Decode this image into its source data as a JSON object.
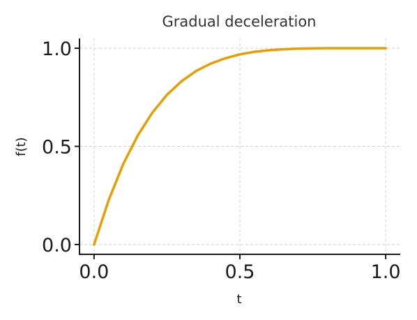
{
  "chart_data": {
    "type": "line",
    "title": "Gradual deceleration",
    "xlabel": "t",
    "ylabel": "f(t)",
    "xlim": [
      -0.05,
      1.05
    ],
    "ylim": [
      -0.05,
      1.05
    ],
    "x_ticks": [
      0.0,
      0.5,
      1.0
    ],
    "y_ticks": [
      0.0,
      0.5,
      1.0
    ],
    "x_tick_labels": [
      "0.0",
      "0.5",
      "1.0"
    ],
    "y_tick_labels": [
      "0.0",
      "0.5",
      "1.0"
    ],
    "grid": true,
    "series": [
      {
        "color": "#E69F00",
        "x": [
          0.0,
          0.05,
          0.1,
          0.15,
          0.2,
          0.25,
          0.3,
          0.35,
          0.4,
          0.45,
          0.5,
          0.55,
          0.6,
          0.65,
          0.7,
          0.75,
          0.8,
          0.85,
          0.9,
          0.95,
          1.0
        ],
        "y": [
          0.0,
          0.226,
          0.41,
          0.556,
          0.672,
          0.763,
          0.832,
          0.884,
          0.922,
          0.949,
          0.969,
          0.982,
          0.99,
          0.995,
          0.998,
          0.999,
          1.0,
          1.0,
          1.0,
          1.0,
          1.0
        ]
      }
    ]
  }
}
